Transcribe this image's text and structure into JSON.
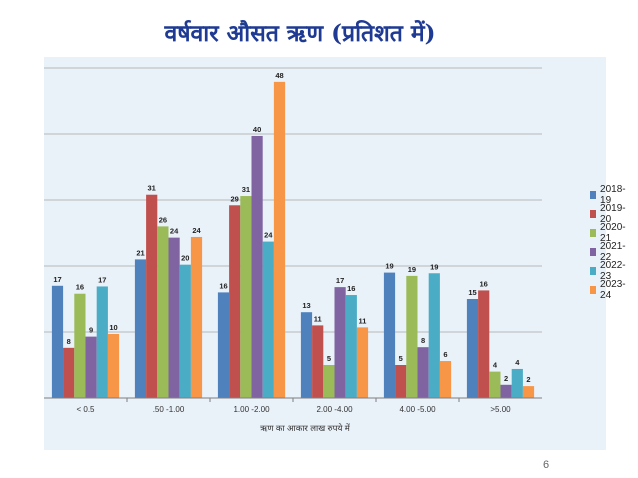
{
  "title": "वर्षवार औसत ऋण (प्रतिशत में)",
  "page_number": "6",
  "chart_data": {
    "type": "bar",
    "title": "वर्षवार औसत ऋण (प्रतिशत में)",
    "xlabel": "ऋण का आकार लाख रुपये में",
    "ylabel": "",
    "ylim": [
      0,
      50
    ],
    "yticks": [
      "0",
      "10",
      "20",
      "30",
      "40",
      "50"
    ],
    "grid": true,
    "legend": "right",
    "categories": [
      "< 0.5",
      ".50 -1.00",
      "1.00 -2.00",
      "2.00 -4.00",
      "4.00 -5.00",
      ">5.00"
    ],
    "series": [
      {
        "name": "2018-19",
        "color": "#4f81bd",
        "values": [
          17,
          21,
          16,
          13,
          19,
          15
        ],
        "labels": [
          "17",
          "21",
          "16",
          "13",
          "19",
          "15"
        ]
      },
      {
        "name": "2019-20",
        "color": "#c0504d",
        "values": [
          7.6,
          30.8,
          29.2,
          11,
          5,
          16.3
        ],
        "labels": [
          "8",
          "31",
          "29",
          "11",
          "5",
          "16"
        ]
      },
      {
        "name": "2020-21",
        "color": "#9bbb59",
        "values": [
          15.8,
          26,
          30.6,
          5,
          18.5,
          4
        ],
        "labels": [
          "16",
          "26",
          "31",
          "5",
          "19",
          "4"
        ]
      },
      {
        "name": "2021-22",
        "color": "#8064a2",
        "values": [
          9.3,
          24.3,
          39.7,
          16.8,
          7.7,
          2
        ],
        "labels": [
          "9",
          "24",
          "40",
          "17",
          "8",
          "2"
        ]
      },
      {
        "name": "2022-23",
        "color": "#4bacc6",
        "values": [
          16.9,
          20.2,
          23.7,
          15.6,
          18.9,
          4.4
        ],
        "labels": [
          "17",
          "20",
          "24",
          "16",
          "19",
          "4"
        ]
      },
      {
        "name": "2023-24",
        "color": "#f79646",
        "values": [
          9.7,
          24.4,
          47.9,
          10.7,
          5.6,
          1.8
        ],
        "labels": [
          "10",
          "24",
          "48",
          "11",
          "6",
          "2"
        ]
      }
    ]
  }
}
